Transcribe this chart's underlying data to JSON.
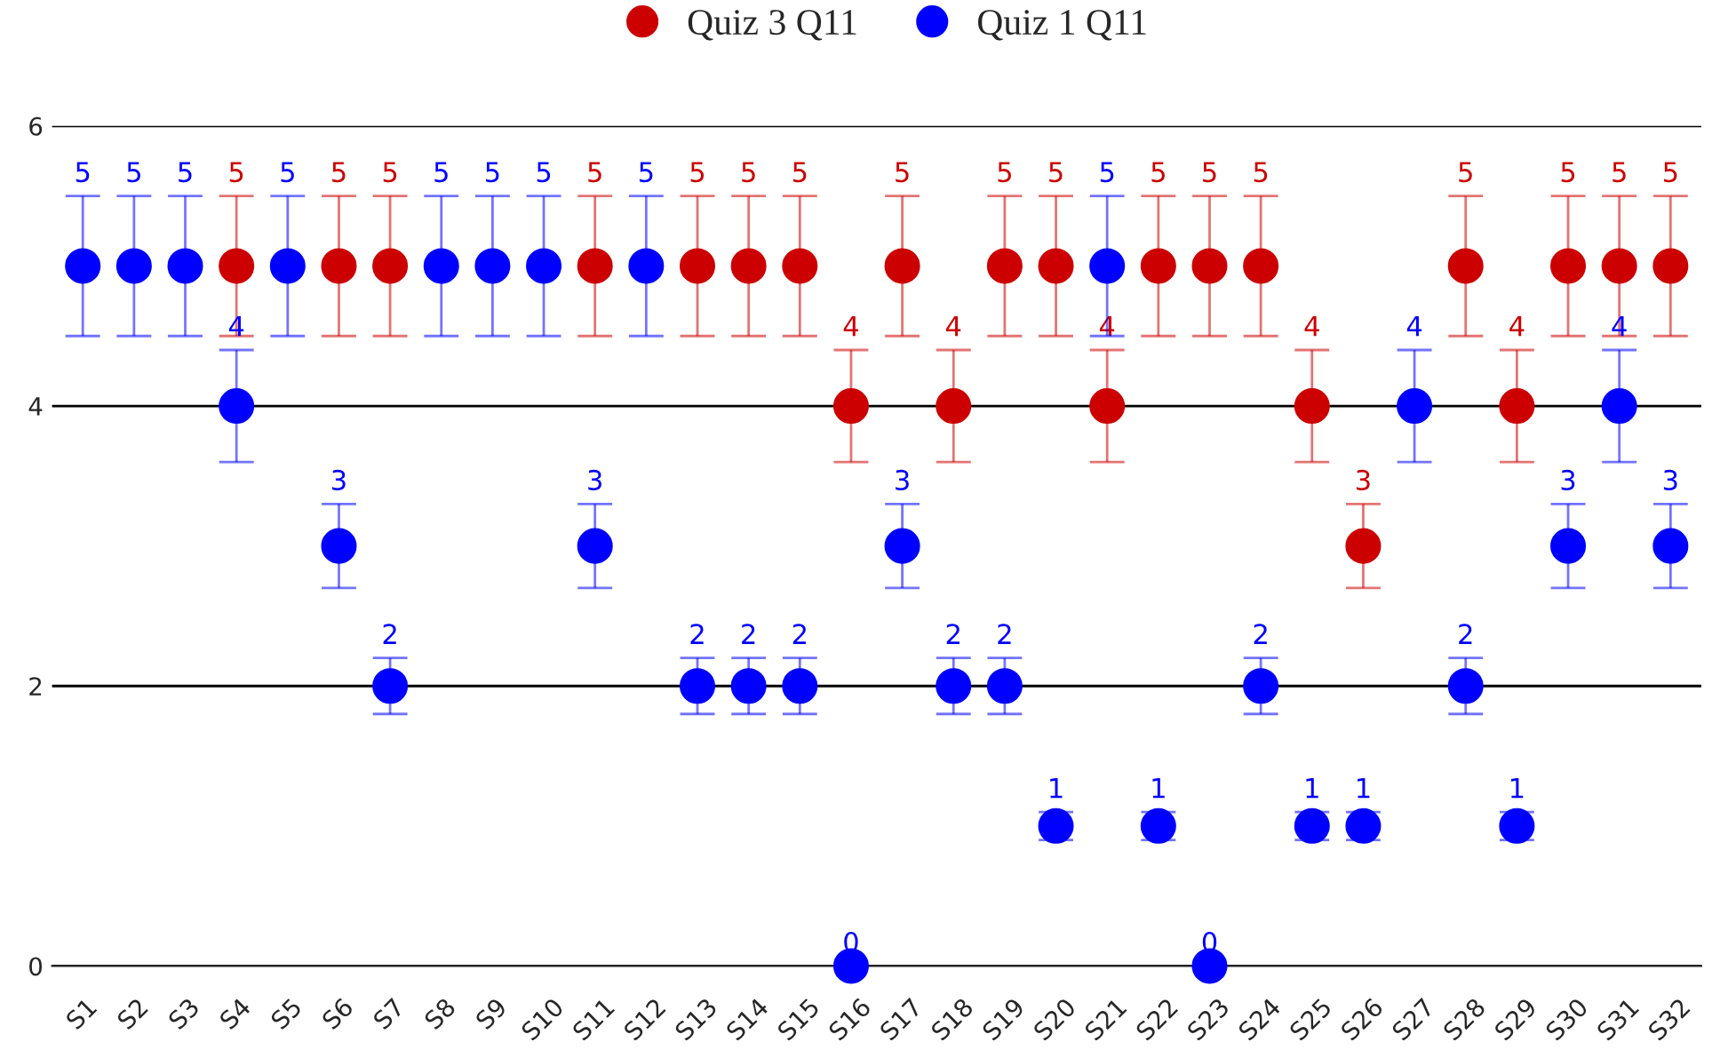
{
  "chart_data": {
    "type": "scatter",
    "categories": [
      "S1",
      "S2",
      "S3",
      "S4",
      "S5",
      "S6",
      "S7",
      "S8",
      "S9",
      "S10",
      "S11",
      "S12",
      "S13",
      "S14",
      "S15",
      "S16",
      "S17",
      "S18",
      "S19",
      "S20",
      "S21",
      "S22",
      "S23",
      "S24",
      "S25",
      "S26",
      "S27",
      "S28",
      "S29",
      "S30",
      "S31",
      "S32"
    ],
    "series": [
      {
        "name": "Quiz 3 Q11",
        "color": "#cc0000",
        "values": [
          null,
          null,
          null,
          5,
          null,
          5,
          5,
          null,
          null,
          null,
          5,
          null,
          5,
          5,
          5,
          4,
          5,
          4,
          5,
          5,
          4,
          5,
          5,
          5,
          4,
          3,
          null,
          5,
          4,
          5,
          5,
          5
        ],
        "errors": [
          null,
          null,
          null,
          0.5,
          null,
          0.5,
          0.5,
          null,
          null,
          null,
          0.5,
          null,
          0.5,
          0.5,
          0.5,
          0.4,
          0.5,
          0.4,
          0.5,
          0.5,
          0.4,
          0.5,
          0.5,
          0.5,
          0.4,
          0.3,
          null,
          0.5,
          0.4,
          0.5,
          0.5,
          0.5
        ]
      },
      {
        "name": "Quiz 1 Q11",
        "color": "#0000ff",
        "values": [
          5,
          5,
          5,
          4,
          5,
          3,
          2,
          5,
          5,
          5,
          3,
          5,
          2,
          2,
          2,
          0,
          3,
          2,
          2,
          1,
          5,
          1,
          0,
          2,
          1,
          1,
          4,
          2,
          1,
          3,
          4,
          3
        ],
        "errors": [
          0.5,
          0.5,
          0.5,
          0.4,
          0.5,
          0.3,
          0.2,
          0.5,
          0.5,
          0.5,
          0.3,
          0.5,
          0.2,
          0.2,
          0.2,
          0,
          0.3,
          0.2,
          0.2,
          0.1,
          0.5,
          0.1,
          0,
          0.2,
          0.1,
          0.1,
          0.4,
          0.2,
          0.1,
          0.3,
          0.4,
          0.3
        ]
      }
    ],
    "ylim": [
      0,
      6
    ],
    "yticks": [
      0,
      2,
      4,
      6
    ],
    "grid": "y",
    "legend": "top",
    "marker": "circle",
    "data_labels": true
  }
}
